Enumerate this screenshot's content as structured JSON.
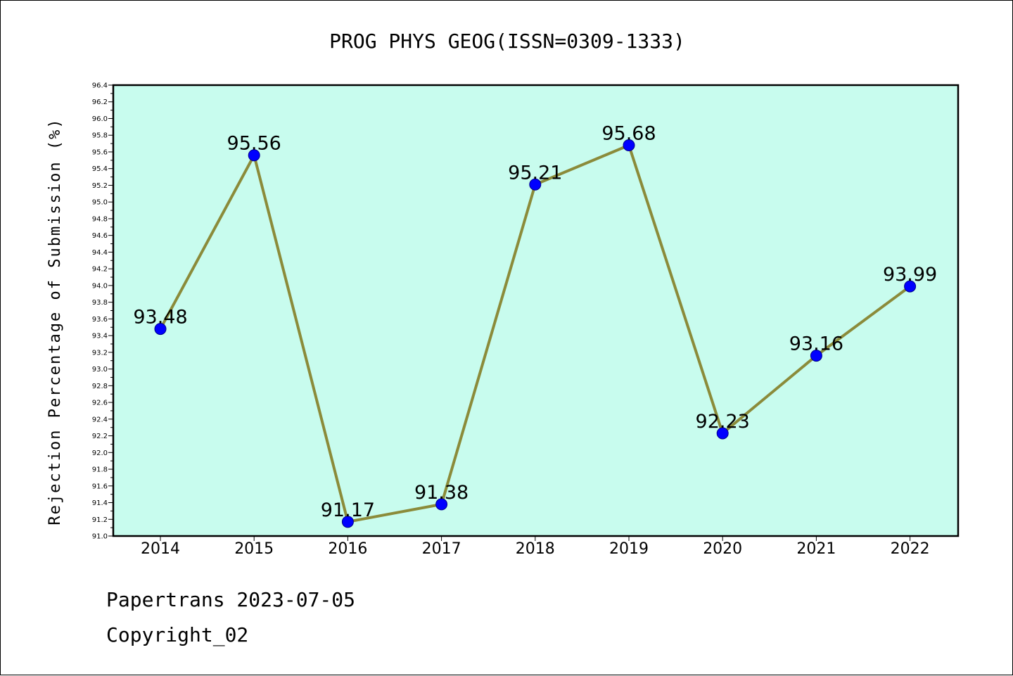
{
  "chart_data": {
    "type": "line",
    "title": "PROG PHYS GEOG(ISSN=0309-1333)",
    "xlabel": "",
    "ylabel": "Rejection Percentage of Submission (%)",
    "categories": [
      "2014",
      "2015",
      "2016",
      "2017",
      "2018",
      "2019",
      "2020",
      "2021",
      "2022"
    ],
    "values": [
      93.48,
      95.56,
      91.17,
      91.38,
      95.21,
      95.68,
      92.23,
      93.16,
      93.99
    ],
    "data_labels": [
      "93.48",
      "95.56",
      "91.17",
      "91.38",
      "95.21",
      "95.68",
      "92.23",
      "93.16",
      "93.99"
    ],
    "ylim": [
      91.0,
      96.4
    ],
    "yticks": [
      "91.0",
      "91.2",
      "91.4",
      "91.6",
      "91.8",
      "92.0",
      "92.2",
      "92.4",
      "92.6",
      "92.8",
      "93.0",
      "93.2",
      "93.4",
      "93.6",
      "93.8",
      "94.0",
      "94.2",
      "94.4",
      "94.6",
      "94.8",
      "95.0",
      "95.2",
      "95.4",
      "95.6",
      "95.8",
      "96.0",
      "96.2",
      "96.4"
    ],
    "grid": false,
    "legend": "none",
    "colors": {
      "plot_background": "#c8fcee",
      "line": "#8b8b3a",
      "marker": "#0000ff",
      "marker_edge": "#00008b"
    }
  },
  "footer": {
    "line1": "Papertrans 2023-07-05",
    "line2": "Copyright_02"
  }
}
